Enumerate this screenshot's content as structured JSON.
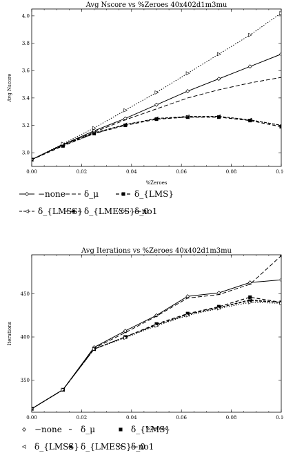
{
  "chart_data": [
    {
      "type": "line",
      "title": "Avg Nscore vs %Zeroes 40x402d1m3mu",
      "xlabel": "%Zeroes",
      "ylabel": "Avg Nscore",
      "xlim": [
        0,
        0.1
      ],
      "ylim": [
        2.9,
        4.05
      ],
      "xticks": [
        "0.00",
        "0.02",
        "0.04",
        "0.06",
        "0.08",
        "0.10"
      ],
      "yticks": [
        "3.0",
        "3.2",
        "3.4",
        "3.6",
        "3.8",
        "4.0"
      ],
      "grid": false,
      "legend_position": "below",
      "x": [
        0,
        0.0125,
        0.025,
        0.0375,
        0.05,
        0.0625,
        0.075,
        0.0875,
        0.1
      ],
      "series": [
        {
          "name": "−none",
          "values": [
            2.95,
            3.06,
            3.16,
            3.25,
            3.35,
            3.45,
            3.54,
            3.63,
            3.72
          ]
        },
        {
          "name": "δ_μ",
          "values": [
            2.95,
            3.06,
            3.15,
            3.24,
            3.32,
            3.4,
            3.46,
            3.51,
            3.55
          ]
        },
        {
          "name": "δ_{LMS}",
          "values": [
            2.95,
            3.05,
            3.14,
            3.2,
            3.245,
            3.26,
            3.26,
            3.235,
            3.19
          ]
        },
        {
          "name": "δ_{LMSS}",
          "values": [
            2.95,
            3.055,
            3.145,
            3.205,
            3.25,
            3.265,
            3.265,
            3.24,
            3.2
          ]
        },
        {
          "name": "δ_{LMESS}−no1",
          "values": [
            2.95,
            3.055,
            3.14,
            3.205,
            3.25,
            3.26,
            3.265,
            3.24,
            3.2
          ]
        },
        {
          "name": "δ_0",
          "values": [
            2.95,
            3.065,
            3.18,
            3.31,
            3.44,
            3.58,
            3.72,
            3.86,
            4.02
          ]
        }
      ]
    },
    {
      "type": "line",
      "title": "Avg Iterations vs %Zeroes 40x402d1m3mu",
      "xlabel": "%Zeroes",
      "ylabel": "Iterations",
      "xlim": [
        0,
        0.1
      ],
      "ylim": [
        313,
        495
      ],
      "xticks": [
        "0.00",
        "0.02",
        "0.04",
        "0.06",
        "0.08",
        "0.10"
      ],
      "yticks": [
        "350",
        "400",
        "450"
      ],
      "grid": false,
      "legend_position": "below",
      "x": [
        0,
        0.0125,
        0.025,
        0.0375,
        0.05,
        0.0625,
        0.075,
        0.0875,
        0.1
      ],
      "series": [
        {
          "name": "−none",
          "values": [
            317,
            339,
            388,
            407,
            425,
            447,
            451,
            463,
            466
          ]
        },
        {
          "name": "δ_μ",
          "values": [
            317,
            339,
            387,
            405,
            424,
            445,
            449,
            461,
            494
          ]
        },
        {
          "name": "δ_{LMS}",
          "values": [
            317,
            339,
            386,
            400,
            415,
            427,
            435,
            446,
            440
          ]
        },
        {
          "name": "δ_{LMSS}",
          "values": [
            317,
            339,
            386,
            400,
            414,
            426,
            434,
            443,
            440
          ]
        },
        {
          "name": "δ_{LMESS}−no1",
          "values": [
            317,
            339,
            386,
            400,
            414,
            426,
            434,
            442,
            440
          ]
        },
        {
          "name": "δ_0",
          "values": [
            317,
            339,
            386,
            399,
            413,
            425,
            433,
            440,
            439
          ]
        }
      ]
    }
  ]
}
